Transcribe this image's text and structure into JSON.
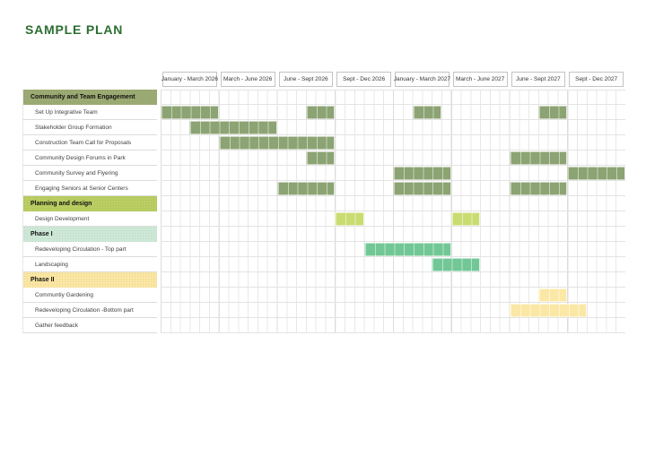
{
  "title": "SAMPLE PLAN",
  "chart_data": {
    "type": "bar",
    "subtype": "gantt",
    "unit": "half-month cells, 6 per quarter column, 48 total (x origin = first quarter)",
    "quarters": [
      "January - March 2026",
      "March - June 2026",
      "June - Sept 2026",
      "Sept - Dec 2026",
      "January - March 2027",
      "March - June 2027",
      "June - Sept 2027",
      "Sept - Dec 2027"
    ],
    "rows": [
      {
        "kind": "section",
        "label": "Community and Team Engagement",
        "theme": "olive",
        "bars": []
      },
      {
        "kind": "task",
        "label": "Set Up Integrative Team",
        "theme": "olive",
        "bars": [
          [
            0,
            6
          ],
          [
            15,
            3
          ],
          [
            26,
            3
          ],
          [
            39,
            3
          ]
        ]
      },
      {
        "kind": "task",
        "label": "Stakeholder Group Formation",
        "theme": "olive",
        "bars": [
          [
            3,
            9
          ]
        ]
      },
      {
        "kind": "task",
        "label": "Construction Team Call for Proposals",
        "theme": "olive",
        "bars": [
          [
            6,
            12
          ]
        ]
      },
      {
        "kind": "task",
        "label": "Community Design Forums in Park",
        "theme": "olive",
        "bars": [
          [
            15,
            3
          ],
          [
            36,
            6
          ]
        ]
      },
      {
        "kind": "task",
        "label": "Community Survey and Flyering",
        "theme": "olive",
        "bars": [
          [
            24,
            6
          ],
          [
            42,
            6
          ]
        ]
      },
      {
        "kind": "task",
        "label": "Engaging Seniors at Senior Centers",
        "theme": "olive",
        "bars": [
          [
            12,
            6
          ],
          [
            24,
            6
          ],
          [
            36,
            6
          ]
        ]
      },
      {
        "kind": "section",
        "label": "Planning and design",
        "theme": "lime",
        "bars": []
      },
      {
        "kind": "task",
        "label": "Design Development",
        "theme": "lime",
        "bars": [
          [
            18,
            3
          ],
          [
            30,
            3
          ]
        ]
      },
      {
        "kind": "section",
        "label": "Phase I",
        "theme": "mint",
        "bars": []
      },
      {
        "kind": "task",
        "label": "Redeveloping Circulation - Top part",
        "theme": "mint",
        "bars": [
          [
            21,
            9
          ]
        ]
      },
      {
        "kind": "task",
        "label": "Landscaping",
        "theme": "mint",
        "bars": [
          [
            28,
            5
          ]
        ]
      },
      {
        "kind": "section",
        "label": "Phase II",
        "theme": "yellow",
        "bars": []
      },
      {
        "kind": "task",
        "label": "Communtiy Gardening",
        "theme": "yellow",
        "bars": [
          [
            39,
            3
          ]
        ]
      },
      {
        "kind": "task",
        "label": "Redeveloping Circulation -Bottom part",
        "theme": "yellow",
        "bars": [
          [
            36,
            8
          ]
        ]
      },
      {
        "kind": "task",
        "label": "Gather feedback",
        "theme": "yellow",
        "bars": []
      }
    ],
    "legend": "none",
    "grid": "on"
  },
  "colors": {
    "title": "#2c6e31",
    "section_bg": {
      "olive": "#9cab73",
      "lime": "#b9cd62",
      "mint": "#cde8d6",
      "yellow": "#fae6a2"
    },
    "bar_fill": {
      "olive": "#8ca373",
      "lime": "#c9dc72",
      "mint": "#72c796",
      "yellow": "#fbe8a6"
    },
    "grid_line": "#e8e8e8",
    "grid_quarter_line": "#dcdcdc",
    "row_line": "#e3e3e3",
    "header_border": "#c4c4c4",
    "header_text": "#383838",
    "label_text": "#3f3f3f"
  }
}
